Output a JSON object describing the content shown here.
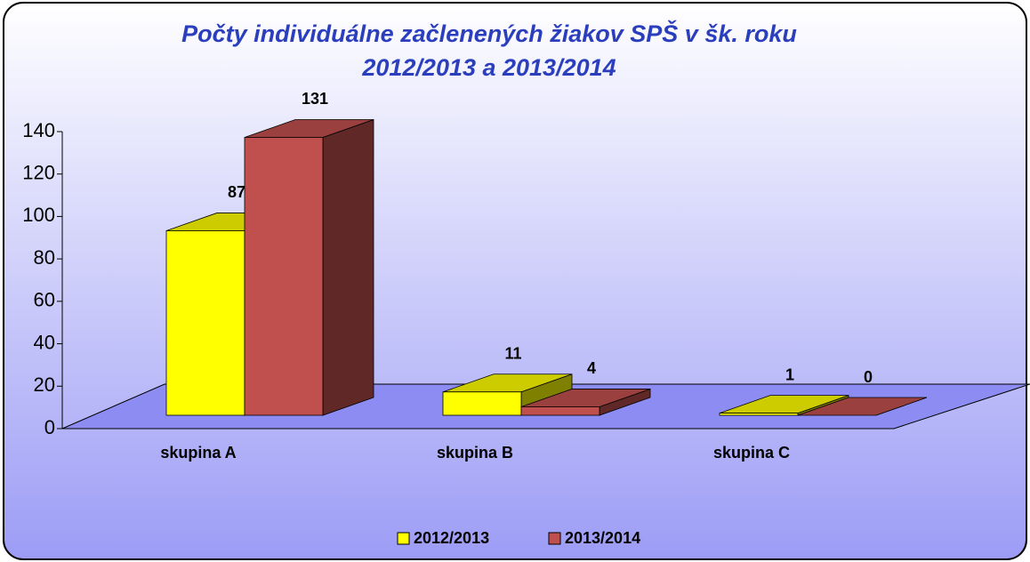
{
  "chart_data": {
    "type": "bar3d",
    "title": [
      "Počty individuálne začlenených žiakov SPŠ v šk. roku",
      "2012/2013 a 2013/2014"
    ],
    "categories": [
      "skupina A",
      "skupina B",
      "skupina C"
    ],
    "series": [
      {
        "name": "2012/2013",
        "color": "#ffff00",
        "values": [
          87,
          11,
          1
        ]
      },
      {
        "name": "2013/2014",
        "color": "#c0504d",
        "values": [
          131,
          4,
          0
        ]
      }
    ],
    "ylim": [
      0,
      140
    ],
    "yticks": [
      0,
      20,
      40,
      60,
      80,
      100,
      120,
      140
    ],
    "legend": "bottom"
  }
}
